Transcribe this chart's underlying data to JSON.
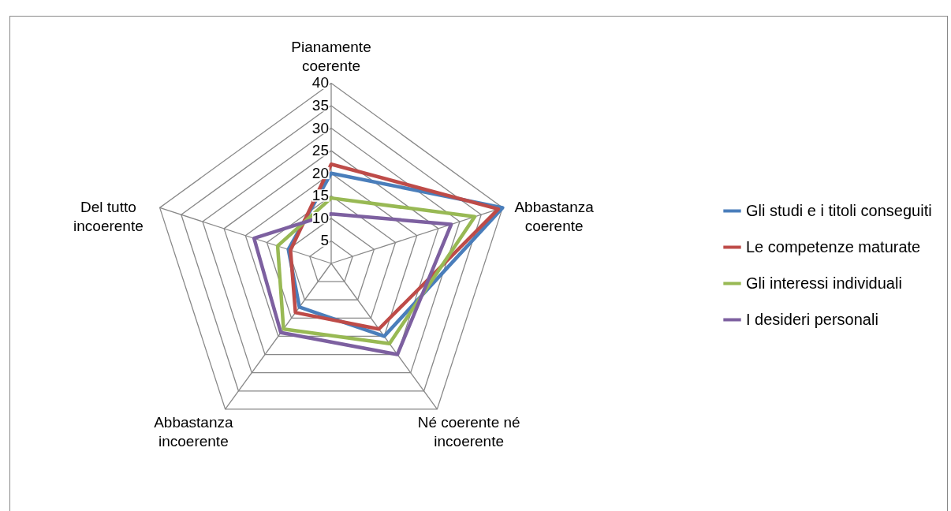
{
  "chart_data": {
    "type": "radar",
    "categories": [
      "Pianamente coerente",
      "Abbastanza coerente",
      "Né coerente né incoerente",
      "Abbastanza incoerente",
      "Del tutto incoerente"
    ],
    "series": [
      {
        "name": "Gli studi e i titoli conseguiti",
        "color": "#4a7ebb",
        "values": [
          20,
          40,
          20,
          12,
          10
        ]
      },
      {
        "name": "Le competenze maturate",
        "color": "#be4b48",
        "values": [
          22,
          39,
          18,
          13.5,
          9.5
        ]
      },
      {
        "name": "Gli interessi individuali",
        "color": "#98b954",
        "values": [
          14.5,
          33.5,
          22,
          18,
          12.5
        ]
      },
      {
        "name": "I desideri personali",
        "color": "#7d60a0",
        "values": [
          11,
          28,
          25,
          19,
          18
        ]
      }
    ],
    "ylim": [
      0,
      40
    ],
    "yticks": [
      5,
      10,
      15,
      20,
      25,
      30,
      35,
      40
    ],
    "grid": true,
    "legend": "right"
  }
}
